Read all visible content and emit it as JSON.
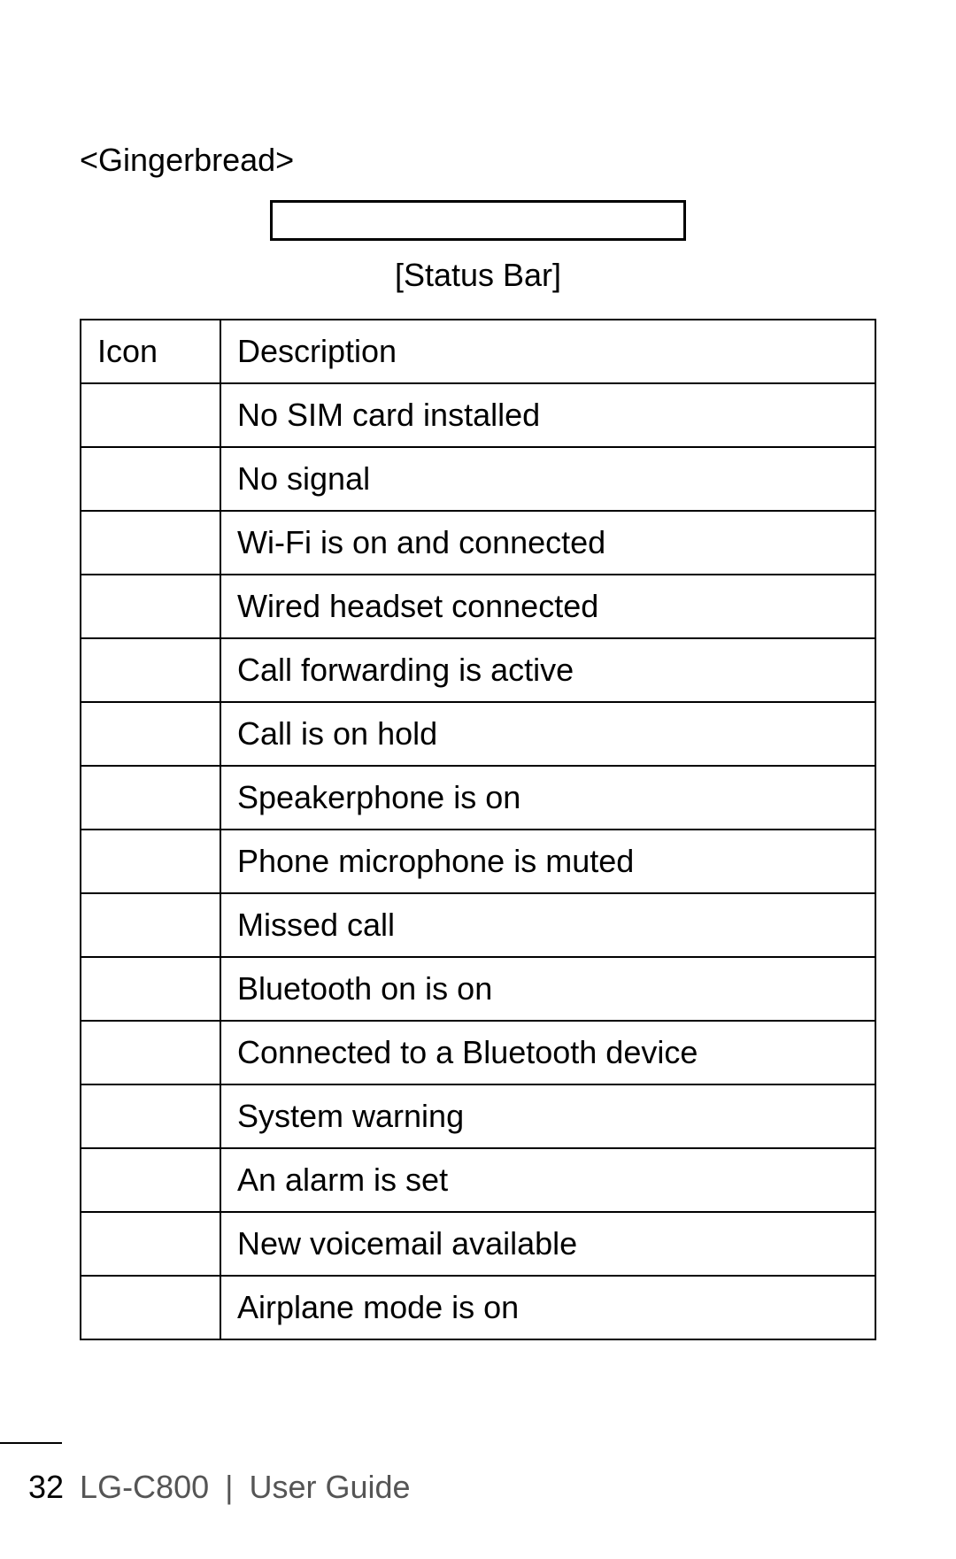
{
  "heading": "<Gingerbread>",
  "statusbar_label": "[Status Bar]",
  "table": {
    "header_icon": "Icon",
    "header_desc": "Description",
    "rows": [
      {
        "desc": "No SIM card installed",
        "tall": false
      },
      {
        "desc": "No signal",
        "tall": false
      },
      {
        "desc": "Wi-Fi is on and connected",
        "tall": true
      },
      {
        "desc": "Wired headset connected",
        "tall": false
      },
      {
        "desc": "Call forwarding is active",
        "tall": false
      },
      {
        "desc": "Call is on hold",
        "tall": false
      },
      {
        "desc": "Speakerphone is on",
        "tall": false
      },
      {
        "desc": "Phone microphone is muted",
        "tall": false
      },
      {
        "desc": "Missed call",
        "tall": false
      },
      {
        "desc": "Bluetooth on is on",
        "tall": false
      },
      {
        "desc": "Connected to a Bluetooth device",
        "tall": false
      },
      {
        "desc": "System warning",
        "tall": false
      },
      {
        "desc": "An alarm is set",
        "tall": false
      },
      {
        "desc": "New voicemail available",
        "tall": false
      },
      {
        "desc": "Airplane mode is on",
        "tall": false
      }
    ]
  },
  "footer": {
    "page_number": "32",
    "model": "LG-C800",
    "sep": "|",
    "guide": "User Guide"
  },
  "colors": {
    "text": "#000000",
    "footer_text": "#555555",
    "border": "#000000",
    "background": "#ffffff"
  },
  "typography": {
    "font_family": "Arial, Helvetica, sans-serif",
    "font_size_pt": 27
  }
}
